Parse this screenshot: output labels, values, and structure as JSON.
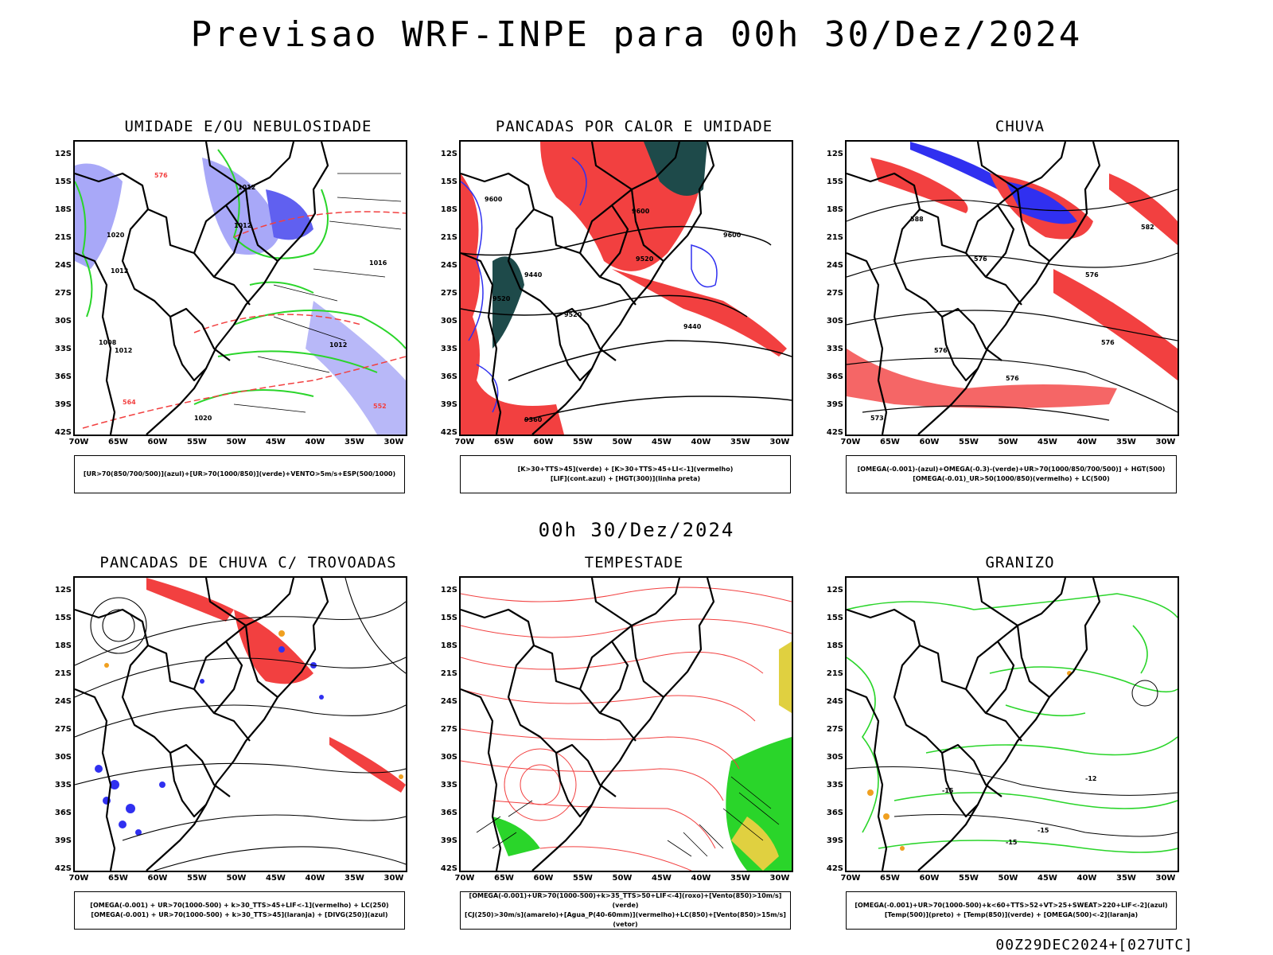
{
  "title": "Previsao WRF-INPE  para 00h 30/Dez/2024",
  "subtitle": "00h 30/Dez/2024",
  "footer": "00Z29DEC2024+[027UTC]",
  "axes": {
    "lat_labels": [
      "12S",
      "15S",
      "18S",
      "21S",
      "24S",
      "27S",
      "30S",
      "33S",
      "36S",
      "39S",
      "42S"
    ],
    "lon_labels": [
      "70W",
      "65W",
      "60W",
      "55W",
      "50W",
      "45W",
      "40W",
      "35W",
      "30W"
    ]
  },
  "colors": {
    "red": "#f24040",
    "green": "#2ad52a",
    "blue": "#3030f0",
    "lavender": "#a8a8f8",
    "darkteal": "#1e4a4a",
    "orange": "#f0a020",
    "yellow": "#e0d040"
  },
  "panels": [
    {
      "title": "UMIDADE E/OU NEBULOSIDADE",
      "legend": [
        "[UR>70(850/700/500)](azul)+[UR>70(1000/850)](verde)+VENTO>5m/s+ESP(500/1000)"
      ],
      "contour_labels": [
        "1012",
        "1012",
        "1020",
        "1012",
        "1016",
        "1008",
        "1012",
        "1012",
        "1020",
        "576",
        "564",
        "552"
      ]
    },
    {
      "title": "PANCADAS POR CALOR E UMIDADE",
      "legend": [
        "[K>30+TTS>45](verde) + [K>30+TTS>45+LI<-1](vermelho)",
        "[LIF](cont.azul) + [HGT(300)](linha preta)"
      ],
      "contour_labels": [
        "9600",
        "9600",
        "9520",
        "9520",
        "9600",
        "9440",
        "9520",
        "9440",
        "9360"
      ]
    },
    {
      "title": "CHUVA",
      "legend": [
        "[OMEGA(-0.001)-(azul)+OMEGA(-0.3)-(verde)+UR>70(1000/850/700/500)] + HGT(500)",
        "[OMEGA(-0.01)_UR>50(1000/850)(vermelho) + LC(500)"
      ],
      "contour_labels": [
        "588",
        "582",
        "576",
        "576",
        "576",
        "576",
        "576",
        "573"
      ]
    },
    {
      "title": "PANCADAS DE CHUVA C/ TROVOADAS",
      "legend": [
        "[OMEGA(-0.001) + UR>70(1000-500) + k>30_TTS>45+LIF<-1](vermelho) + LC(250)",
        "[OMEGA(-0.001) + UR>70(1000-500) + k>30_TTS>45](laranja) + [DIVG(250)](azul)"
      ],
      "contour_labels": []
    },
    {
      "title": "TEMPESTADE",
      "legend": [
        "[OMEGA(-0.001)+UR>70(1000-500)+k>35_TTS>50+LIF<-4](roxo)+[Vento(850)>10m/s](verde)",
        "[CJ(250)>30m/s](amarelo)+[Agua_P(40-60mm)](vermelho)+LC(850)+[Vento(850)>15m/s](vetor)"
      ],
      "contour_labels": []
    },
    {
      "title": "GRANIZO",
      "legend": [
        "[OMEGA(-0.001)+UR>70(1000-500)+k<60+TTS>52+VT>25+SWEAT>220+LIF<-2](azul)",
        "[Temp(500)](preto) + [Temp(850)](verde) + [OMEGA(500)<-2](laranja)"
      ],
      "contour_labels": [
        "-15",
        "-12",
        "-15",
        "-15"
      ]
    }
  ]
}
